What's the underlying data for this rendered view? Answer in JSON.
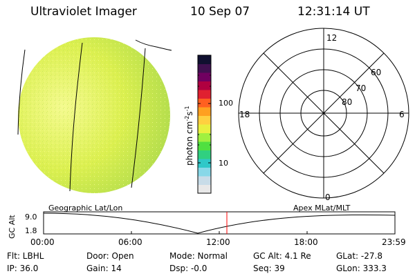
{
  "header": {
    "title": "Ultraviolet Imager",
    "date": "10 Sep 07",
    "time": "12:31:14 UT"
  },
  "colorbar": {
    "unit_label": "photon cm",
    "unit_exp1": "-2",
    "unit_s": "s",
    "unit_exp2": "-1",
    "tick_100": "100",
    "tick_10": "10",
    "colors": [
      "#e8e8e8",
      "#c8dce8",
      "#88d8e8",
      "#30c8c8",
      "#30d080",
      "#50e040",
      "#a0f040",
      "#e8f040",
      "#ffd040",
      "#ffa020",
      "#ff6020",
      "#e02030",
      "#b00040",
      "#700060",
      "#401050",
      "#101030"
    ]
  },
  "polar": {
    "mlt_top": "12",
    "mlt_left": "18",
    "mlt_right": "6",
    "mlt_bottom": "0",
    "lat_60": "60",
    "lat_70": "70",
    "lat_80": "80"
  },
  "timeline": {
    "left_label": "Geographic Lat/Lon",
    "right_label": "Apex MLat/MLT",
    "axis_title": "GC Alt",
    "y_top": "9.0",
    "y_bottom": "1.8",
    "x_ticks": [
      "00:00",
      "06:00",
      "12:00",
      "18:00",
      "23:59"
    ],
    "current_time_hours": 12.52
  },
  "info": {
    "filter": "Flt: LBHL",
    "door": "Door: Open",
    "mode": "Mode: Normal",
    "gc_alt": "GC Alt: 4.1 Re",
    "glat": "GLat: -27.8",
    "ip": "IP: 36.0",
    "gain": "Gain: 14",
    "dsp": "Dsp:    -0.0",
    "seq": "Seq: 39",
    "glon": "GLon: 333.3"
  },
  "colors": {
    "disk_base": "#d8f048",
    "disk_light": "#f0f888",
    "disk_green": "#b0e050",
    "marker": "#ff0000"
  }
}
